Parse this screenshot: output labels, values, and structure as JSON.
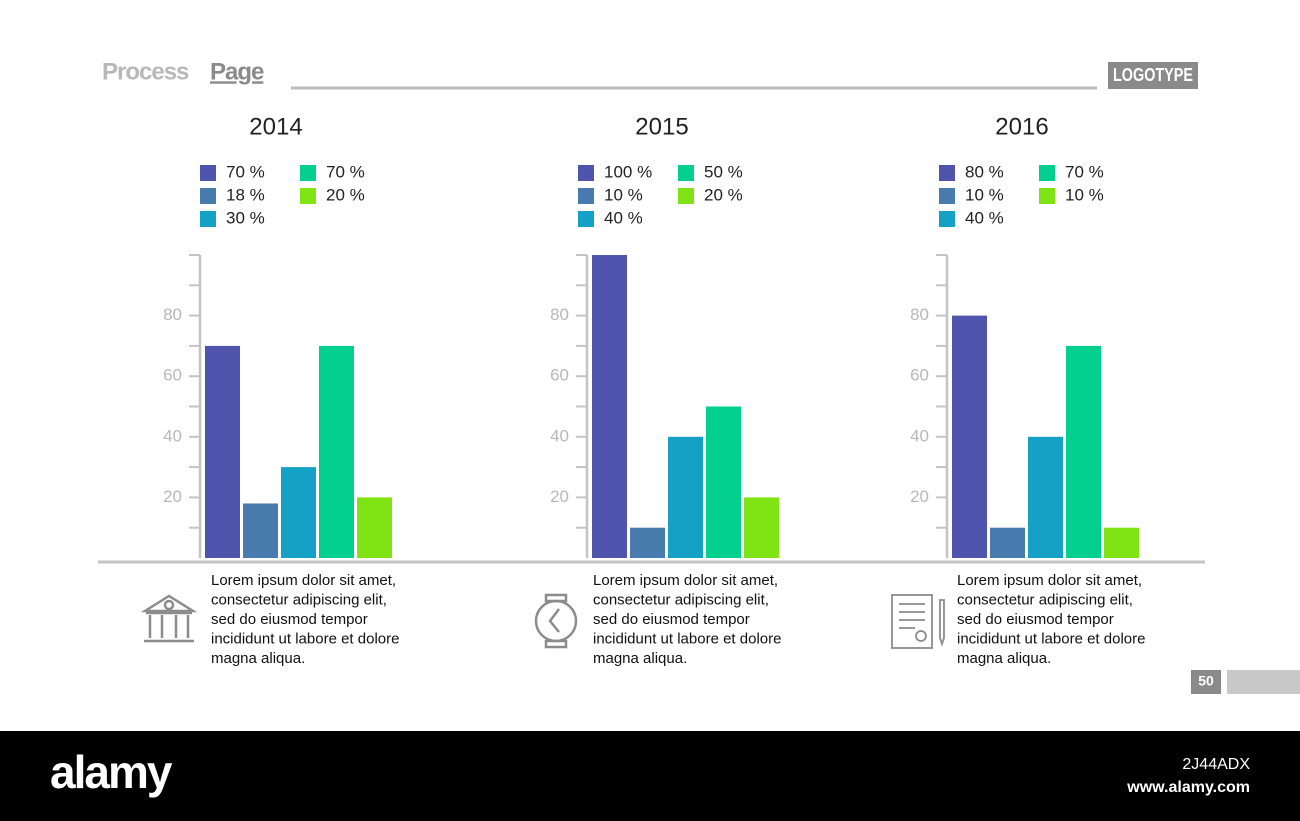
{
  "header": {
    "title_light": "Process",
    "title_bold": "Page",
    "logo": "LOGOTYPE"
  },
  "chart_data": [
    {
      "type": "bar",
      "title": "2014",
      "categories": [
        null,
        null,
        null,
        null,
        null
      ],
      "values": [
        70,
        18,
        30,
        70,
        20
      ],
      "value_labels": [
        "70 %",
        "18 %",
        "30 %",
        "70 %",
        "20 %"
      ],
      "colors": [
        "#4f55ad",
        "#4a7baf",
        "#15a0c6",
        "#03cf8f",
        "#7fe314"
      ],
      "ylim": [
        0,
        100
      ],
      "yticks": [
        20,
        40,
        60,
        80
      ],
      "minor_yticks": [
        10,
        30,
        50,
        70,
        90,
        100
      ]
    },
    {
      "type": "bar",
      "title": "2015",
      "categories": [
        null,
        null,
        null,
        null,
        null
      ],
      "values": [
        100,
        10,
        40,
        50,
        20
      ],
      "value_labels": [
        "100 %",
        "10 %",
        "40 %",
        "50 %",
        "20 %"
      ],
      "colors": [
        "#4f55ad",
        "#4a7baf",
        "#15a0c6",
        "#03cf8f",
        "#7fe314"
      ],
      "ylim": [
        0,
        100
      ],
      "yticks": [
        20,
        40,
        60,
        80
      ],
      "minor_yticks": [
        10,
        30,
        50,
        70,
        90,
        100
      ]
    },
    {
      "type": "bar",
      "title": "2016",
      "categories": [
        null,
        null,
        null,
        null,
        null
      ],
      "values": [
        80,
        10,
        40,
        70,
        10
      ],
      "value_labels": [
        "80 %",
        "10 %",
        "40 %",
        "70 %",
        "10 %"
      ],
      "colors": [
        "#4f55ad",
        "#4a7baf",
        "#15a0c6",
        "#03cf8f",
        "#7fe314"
      ],
      "ylim": [
        0,
        100
      ],
      "yticks": [
        20,
        40,
        60,
        80
      ],
      "minor_yticks": [
        10,
        30,
        50,
        70,
        90,
        100
      ]
    }
  ],
  "captions": [
    {
      "lines": [
        "Lorem ipsum dolor sit amet,",
        "consectetur adipiscing elit,",
        "sed do eiusmod tempor",
        "incididunt ut labore et dolore",
        "magna aliqua."
      ]
    },
    {
      "lines": [
        "Lorem ipsum dolor sit amet,",
        "consectetur adipiscing elit,",
        "sed do eiusmod tempor",
        "incididunt ut labore et dolore",
        "magna aliqua."
      ]
    },
    {
      "lines": [
        "Lorem ipsum dolor sit amet,",
        "consectetur adipiscing elit,",
        "sed do eiusmod tempor",
        "incididunt ut labore et dolore",
        "magna aliqua."
      ]
    }
  ],
  "footer": {
    "page_number": "50"
  },
  "watermark": {
    "brand": "alamy",
    "image_id": "2J44ADX",
    "url": "www.alamy.com"
  }
}
